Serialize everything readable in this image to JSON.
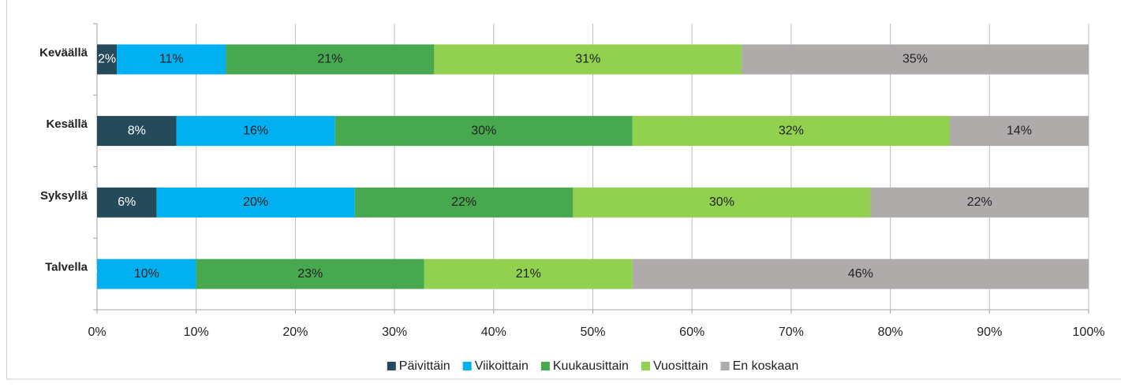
{
  "chart_data": {
    "type": "stacked-bar-horizontal",
    "categories": [
      "Keväällä",
      "Kesällä",
      "Syksyllä",
      "Talvella"
    ],
    "series": [
      {
        "name": "Päivittäin",
        "color": "#254b5b",
        "label_color": "#ffffff",
        "values": [
          2,
          8,
          6,
          0
        ],
        "value_labels": [
          "2%",
          "8%",
          "6%",
          "%"
        ]
      },
      {
        "name": "Viikoittain",
        "color": "#00b0f0",
        "label_color": "#222222",
        "values": [
          11,
          16,
          20,
          10
        ],
        "value_labels": [
          "11%",
          "16%",
          "20%",
          "10%"
        ]
      },
      {
        "name": "Kuukausittain",
        "color": "#47a84f",
        "label_color": "#222222",
        "values": [
          21,
          30,
          22,
          23
        ],
        "value_labels": [
          "21%",
          "30%",
          "22%",
          "23%"
        ]
      },
      {
        "name": "Vuosittain",
        "color": "#92d050",
        "label_color": "#222222",
        "values": [
          31,
          32,
          30,
          21
        ],
        "value_labels": [
          "31%",
          "32%",
          "30%",
          "21%"
        ]
      },
      {
        "name": "En koskaan",
        "color": "#afabab",
        "label_color": "#222222",
        "values": [
          35,
          14,
          22,
          46
        ],
        "value_labels": [
          "35%",
          "14%",
          "22%",
          "46%"
        ]
      }
    ],
    "xlim": [
      0,
      100
    ],
    "xticks": [
      {
        "value": 0,
        "label": "0%"
      },
      {
        "value": 10,
        "label": "10%"
      },
      {
        "value": 20,
        "label": "20%"
      },
      {
        "value": 30,
        "label": "30%"
      },
      {
        "value": 40,
        "label": "40%"
      },
      {
        "value": 50,
        "label": "50%"
      },
      {
        "value": 60,
        "label": "60%"
      },
      {
        "value": 70,
        "label": "70%"
      },
      {
        "value": 80,
        "label": "80%"
      },
      {
        "value": 90,
        "label": "90%"
      },
      {
        "value": 100,
        "label": "100%"
      }
    ],
    "grid": true,
    "legend": "bottom"
  }
}
